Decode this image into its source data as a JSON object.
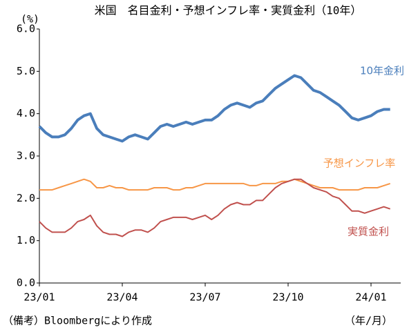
{
  "chart_data": {
    "type": "line",
    "title": "米国　名目金利・予想インフレ率・実質金利（10年）",
    "y_unit": "(%)",
    "x_unit": "（年/月）",
    "note": "（備考）Bloombergにより作成",
    "categories": [
      "23/01",
      null,
      null,
      null,
      null,
      null,
      null,
      null,
      null,
      null,
      null,
      null,
      null,
      "23/04",
      null,
      null,
      null,
      null,
      null,
      null,
      null,
      null,
      null,
      null,
      null,
      null,
      "23/07",
      null,
      null,
      null,
      null,
      null,
      null,
      null,
      null,
      null,
      null,
      null,
      null,
      "23/10",
      null,
      null,
      null,
      null,
      null,
      null,
      null,
      null,
      null,
      null,
      null,
      null,
      "24/01",
      null,
      null,
      null
    ],
    "ylim": [
      0,
      6
    ],
    "yticks": [
      {
        "value": 0,
        "label": "0.0"
      },
      {
        "value": 1,
        "label": "1.0"
      },
      {
        "value": 2,
        "label": "2.0"
      },
      {
        "value": 3,
        "label": "3.0"
      },
      {
        "value": 4,
        "label": "4.0"
      },
      {
        "value": 5,
        "label": "5.0"
      },
      {
        "value": 6,
        "label": "6.0"
      }
    ],
    "series": [
      {
        "name": "10年金利",
        "color": "#4a7ebb",
        "values": [
          3.7,
          3.55,
          3.45,
          3.45,
          3.5,
          3.65,
          3.85,
          3.95,
          4.0,
          3.65,
          3.5,
          3.45,
          3.4,
          3.35,
          3.45,
          3.5,
          3.45,
          3.4,
          3.55,
          3.7,
          3.75,
          3.7,
          3.75,
          3.8,
          3.75,
          3.8,
          3.85,
          3.85,
          3.95,
          4.1,
          4.2,
          4.25,
          4.2,
          4.15,
          4.25,
          4.3,
          4.45,
          4.6,
          4.7,
          4.8,
          4.9,
          4.85,
          4.7,
          4.55,
          4.5,
          4.4,
          4.3,
          4.2,
          4.05,
          3.9,
          3.85,
          3.9,
          3.95,
          4.05,
          4.1,
          4.1
        ]
      },
      {
        "name": "予想インフレ率",
        "color": "#f79646",
        "values": [
          2.2,
          2.2,
          2.2,
          2.25,
          2.3,
          2.35,
          2.4,
          2.45,
          2.4,
          2.25,
          2.25,
          2.3,
          2.25,
          2.25,
          2.2,
          2.2,
          2.2,
          2.2,
          2.25,
          2.25,
          2.25,
          2.2,
          2.2,
          2.25,
          2.25,
          2.3,
          2.35,
          2.35,
          2.35,
          2.35,
          2.35,
          2.35,
          2.35,
          2.3,
          2.3,
          2.35,
          2.35,
          2.35,
          2.4,
          2.4,
          2.45,
          2.4,
          2.35,
          2.3,
          2.25,
          2.25,
          2.25,
          2.2,
          2.2,
          2.2,
          2.2,
          2.25,
          2.25,
          2.25,
          2.3,
          2.35
        ]
      },
      {
        "name": "実質金利",
        "color": "#c0504d",
        "values": [
          1.45,
          1.3,
          1.2,
          1.2,
          1.2,
          1.3,
          1.45,
          1.5,
          1.6,
          1.35,
          1.2,
          1.15,
          1.15,
          1.1,
          1.2,
          1.25,
          1.25,
          1.2,
          1.3,
          1.45,
          1.5,
          1.55,
          1.55,
          1.55,
          1.5,
          1.55,
          1.6,
          1.5,
          1.6,
          1.75,
          1.85,
          1.9,
          1.85,
          1.85,
          1.95,
          1.95,
          2.1,
          2.25,
          2.35,
          2.4,
          2.45,
          2.45,
          2.35,
          2.25,
          2.2,
          2.15,
          2.05,
          2.0,
          1.85,
          1.7,
          1.7,
          1.65,
          1.7,
          1.75,
          1.8,
          1.75
        ]
      }
    ]
  }
}
